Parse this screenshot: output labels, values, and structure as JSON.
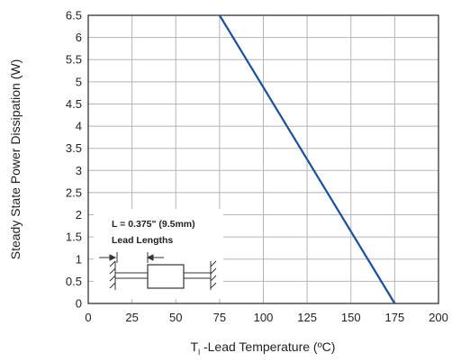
{
  "chart_data": {
    "type": "line",
    "title": "",
    "xlabel": {
      "main": "T",
      "sub": "l",
      "rest": " -Lead Temperature (ºC)"
    },
    "ylabel": "Steady State Power Dissipation (W)",
    "xlim": [
      0,
      200
    ],
    "ylim": [
      0,
      6.5
    ],
    "xticks": [
      "0",
      "25",
      "50",
      "75",
      "100",
      "125",
      "150",
      "175",
      "200"
    ],
    "yticks": [
      "0",
      "0.5",
      "1",
      "1.5",
      "2",
      "2.5",
      "3",
      "3.5",
      "4",
      "4.5",
      "5",
      "5.5",
      "6",
      "6.5"
    ],
    "grid": true,
    "legend": "none",
    "series": [
      {
        "x": [
          75,
          175
        ],
        "y": [
          6.5,
          0
        ],
        "color": "#1a4f9c"
      }
    ],
    "inset": {
      "line1": "L = 0.375\" (9.5mm)",
      "line2": "Lead Lengths"
    }
  }
}
